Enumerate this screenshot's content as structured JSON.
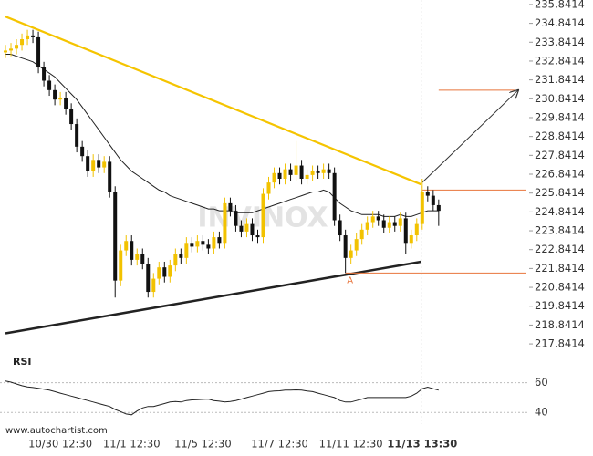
{
  "chart_data": [
    {
      "type": "candlestick",
      "watermark": "INVINOX",
      "source": "www.autochartist.com",
      "categories": [
        null,
        null,
        null,
        null,
        null,
        null,
        null,
        null,
        null,
        null,
        "10/30 12:30",
        null,
        null,
        null,
        null,
        null,
        null,
        null,
        null,
        null,
        null,
        null,
        null,
        "11/1 12:30",
        null,
        null,
        null,
        null,
        null,
        null,
        null,
        null,
        null,
        null,
        null,
        null,
        "11/5 12:30",
        null,
        null,
        null,
        null,
        null,
        null,
        null,
        null,
        null,
        null,
        null,
        null,
        null,
        "11/7 12:30",
        null,
        null,
        null,
        null,
        null,
        null,
        null,
        null,
        null,
        null,
        null,
        null,
        "11/11 12:30",
        null,
        null,
        null,
        null,
        null,
        null,
        null,
        null,
        null,
        null,
        null,
        null,
        "11/13 13:30",
        null,
        null,
        null
      ],
      "open": [
        233.3,
        233.4,
        233.5,
        233.7,
        234.0,
        234.2,
        234.1,
        232.5,
        231.8,
        231.3,
        230.8,
        230.9,
        230.3,
        229.5,
        228.3,
        227.8,
        227.0,
        227.6,
        227.2,
        227.5,
        225.9,
        221.2,
        222.8,
        223.3,
        222.3,
        222.6,
        222.1,
        220.6,
        221.3,
        221.9,
        221.4,
        222.0,
        222.6,
        222.4,
        223.2,
        223.0,
        223.3,
        223.1,
        222.9,
        223.5,
        223.2,
        225.3,
        224.9,
        224.1,
        223.8,
        224.2,
        223.6,
        223.5,
        225.8,
        226.4,
        226.9,
        226.6,
        227.1,
        226.8,
        227.3,
        226.6,
        226.8,
        227.0,
        226.9,
        227.1,
        226.9,
        224.4,
        223.6,
        222.4,
        222.8,
        223.4,
        223.9,
        224.3,
        224.6,
        224.4,
        224.0,
        224.3,
        224.1,
        224.5,
        223.2,
        223.6,
        224.2,
        225.9,
        225.7,
        225.2
      ],
      "high": [
        233.7,
        233.8,
        234.0,
        234.3,
        234.5,
        234.5,
        234.4,
        232.8,
        232.1,
        231.6,
        231.2,
        231.2,
        230.6,
        229.8,
        228.6,
        228.1,
        227.9,
        227.9,
        227.8,
        227.8,
        226.2,
        223.1,
        223.6,
        223.6,
        222.9,
        222.9,
        222.4,
        221.6,
        222.2,
        222.2,
        222.3,
        222.9,
        222.9,
        223.5,
        223.5,
        223.6,
        223.6,
        223.4,
        223.8,
        223.8,
        225.6,
        225.6,
        225.2,
        224.4,
        224.5,
        224.5,
        223.9,
        226.1,
        226.7,
        227.2,
        227.2,
        227.4,
        227.4,
        228.6,
        227.6,
        227.1,
        227.3,
        227.3,
        227.4,
        227.4,
        227.2,
        224.7,
        223.9,
        223.1,
        223.7,
        224.2,
        224.6,
        224.9,
        224.9,
        224.7,
        224.6,
        224.6,
        224.8,
        224.8,
        223.9,
        224.5,
        226.6,
        226.2,
        226.0,
        225.5
      ],
      "low": [
        233.0,
        233.1,
        233.2,
        233.4,
        233.7,
        233.8,
        232.2,
        231.5,
        231.0,
        230.5,
        230.5,
        230.0,
        229.2,
        228.0,
        227.5,
        226.7,
        226.7,
        226.9,
        226.9,
        225.6,
        220.3,
        220.9,
        222.5,
        222.0,
        222.0,
        221.8,
        220.3,
        220.3,
        221.0,
        221.1,
        221.1,
        221.7,
        222.1,
        222.1,
        222.7,
        222.7,
        222.8,
        222.6,
        222.6,
        222.9,
        222.9,
        224.6,
        223.8,
        223.5,
        223.5,
        223.3,
        223.2,
        223.2,
        225.5,
        226.1,
        226.3,
        226.3,
        226.5,
        226.5,
        226.3,
        226.3,
        226.5,
        226.6,
        226.6,
        226.6,
        224.1,
        223.3,
        221.6,
        222.1,
        222.5,
        223.1,
        223.6,
        224.0,
        224.1,
        223.7,
        223.7,
        223.8,
        223.8,
        222.6,
        222.9,
        223.3,
        223.9,
        225.4,
        224.9,
        224.1
      ],
      "close": [
        233.4,
        233.5,
        233.7,
        234.0,
        234.2,
        234.1,
        232.5,
        231.8,
        231.3,
        230.8,
        230.9,
        230.3,
        229.5,
        228.3,
        227.8,
        227.0,
        227.6,
        227.2,
        227.5,
        225.9,
        221.2,
        222.8,
        223.3,
        222.3,
        222.6,
        222.1,
        220.6,
        221.3,
        221.9,
        221.4,
        222.0,
        222.6,
        222.4,
        223.2,
        223.0,
        223.3,
        223.1,
        222.9,
        223.5,
        223.2,
        225.3,
        224.9,
        224.1,
        223.8,
        224.2,
        223.6,
        223.5,
        225.8,
        226.4,
        226.9,
        226.6,
        227.1,
        226.8,
        227.3,
        226.6,
        226.8,
        227.0,
        226.9,
        227.1,
        226.9,
        224.4,
        223.6,
        222.4,
        222.8,
        223.4,
        223.9,
        224.3,
        224.6,
        224.4,
        224.0,
        224.3,
        224.1,
        224.5,
        223.2,
        223.6,
        224.2,
        225.9,
        225.7,
        225.2,
        224.9
      ],
      "up_color": "#f2c200",
      "down_color": "#111111",
      "moving_average": {
        "color": "#222222",
        "values": [
          233.2,
          233.2,
          233.1,
          233.0,
          232.9,
          232.8,
          232.6,
          232.4,
          232.2,
          232.0,
          231.7,
          231.4,
          231.1,
          230.8,
          230.4,
          230.0,
          229.6,
          229.2,
          228.8,
          228.4,
          228.0,
          227.6,
          227.3,
          227.0,
          226.8,
          226.6,
          226.4,
          226.2,
          226.0,
          225.9,
          225.7,
          225.6,
          225.5,
          225.4,
          225.3,
          225.2,
          225.1,
          225.0,
          225.0,
          224.9,
          224.9,
          224.9,
          224.8,
          224.8,
          224.8,
          224.8,
          224.9,
          225.0,
          225.1,
          225.2,
          225.3,
          225.4,
          225.5,
          225.6,
          225.7,
          225.8,
          225.9,
          225.9,
          226.0,
          225.9,
          225.6,
          225.3,
          225.1,
          224.9,
          224.8,
          224.7,
          224.7,
          224.7,
          224.7,
          224.6,
          224.6,
          224.6,
          224.7,
          224.6,
          224.6,
          224.7,
          224.8,
          224.9,
          224.9,
          224.9
        ]
      },
      "resistance_line": {
        "color": "#f5c400",
        "x": [
          0,
          75.8
        ],
        "y": [
          235.2,
          226.3
        ]
      },
      "support_line": {
        "color": "#222222",
        "x": [
          0,
          75.8
        ],
        "y": [
          218.4,
          222.2
        ]
      },
      "levels": [
        {
          "price": 226.0,
          "from": 76,
          "to": 95,
          "color": "#e8743b"
        },
        {
          "price": 221.6,
          "from": 62,
          "to": 95,
          "color": "#e8743b",
          "label": "A"
        },
        {
          "price": 231.3,
          "from": 79,
          "to": 93,
          "color": "#e8743b"
        }
      ],
      "forecast_arrow": {
        "color": "#333333",
        "x": [
          76,
          93.5
        ],
        "y": [
          226.4,
          231.3
        ]
      },
      "now_line_x": 75.8,
      "xlim": [
        -1,
        95.5
      ],
      "ylim": [
        217.12,
        236.08
      ],
      "yticks": [
        235.8414,
        234.8414,
        233.8414,
        232.8414,
        231.8414,
        230.8414,
        229.8414,
        228.8414,
        227.8414,
        226.8414,
        225.8414,
        224.8414,
        223.8414,
        222.8414,
        221.8414,
        220.8414,
        219.8414,
        218.8414,
        217.8414
      ]
    },
    {
      "type": "line",
      "title": "RSI",
      "color": "#222222",
      "values": [
        61.2,
        60.4,
        59.2,
        58.0,
        57.2,
        56.8,
        56.2,
        55.6,
        55.0,
        54.0,
        53.0,
        52.0,
        51.0,
        50.0,
        49.0,
        48.0,
        47.0,
        46.0,
        45.0,
        44.0,
        42.0,
        40.6,
        39.0,
        38.4,
        41.0,
        43.0,
        44.0,
        44.0,
        45.0,
        46.0,
        47.0,
        47.4,
        47.0,
        48.0,
        48.4,
        48.6,
        48.8,
        49.0,
        48.0,
        47.6,
        47.0,
        47.4,
        48.0,
        49.0,
        50.0,
        51.0,
        52.0,
        53.0,
        54.0,
        54.4,
        54.6,
        55.0,
        55.0,
        55.2,
        55.0,
        54.4,
        54.0,
        53.0,
        52.0,
        51.0,
        50.0,
        48.0,
        47.0,
        47.0,
        48.0,
        49.0,
        50.0,
        50.0,
        50.0,
        50.0,
        50.0,
        50.0,
        50.0,
        50.0,
        51.0,
        53.0,
        56.0,
        57.0,
        56.0,
        55.0
      ],
      "ylim": [
        34,
        69
      ],
      "yticks": [
        60,
        40
      ],
      "grid": true
    }
  ]
}
